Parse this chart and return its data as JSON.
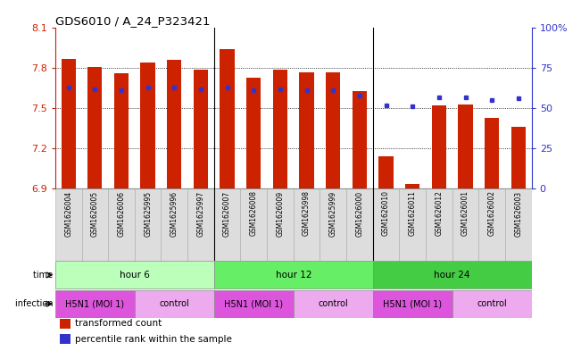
{
  "title": "GDS6010 / A_24_P323421",
  "samples": [
    "GSM1626004",
    "GSM1626005",
    "GSM1626006",
    "GSM1625995",
    "GSM1625996",
    "GSM1625997",
    "GSM1626007",
    "GSM1626008",
    "GSM1626009",
    "GSM1625998",
    "GSM1625999",
    "GSM1626000",
    "GSM1626010",
    "GSM1626011",
    "GSM1626012",
    "GSM1626001",
    "GSM1626002",
    "GSM1626003"
  ],
  "bar_values": [
    7.87,
    7.81,
    7.76,
    7.84,
    7.86,
    7.79,
    7.94,
    7.73,
    7.79,
    7.77,
    7.77,
    7.63,
    7.14,
    6.93,
    7.52,
    7.53,
    7.43,
    7.36
  ],
  "dot_values": [
    63,
    62,
    61,
    63,
    63,
    62,
    63,
    61,
    62,
    61,
    61,
    58,
    52,
    51,
    57,
    57,
    55,
    56
  ],
  "ymin": 6.9,
  "ymax": 8.1,
  "yticks": [
    6.9,
    7.2,
    7.5,
    7.8,
    8.1
  ],
  "right_yticks": [
    0,
    25,
    50,
    75,
    100
  ],
  "right_ytick_labels": [
    "0",
    "25",
    "50",
    "75",
    "100%"
  ],
  "bar_color": "#CC2200",
  "dot_color": "#3333CC",
  "time_groups": [
    {
      "label": "hour 6",
      "start": 0,
      "end": 6,
      "color": "#BBFFBB"
    },
    {
      "label": "hour 12",
      "start": 6,
      "end": 12,
      "color": "#66EE66"
    },
    {
      "label": "hour 24",
      "start": 12,
      "end": 18,
      "color": "#44CC44"
    }
  ],
  "infection_groups": [
    {
      "label": "H5N1 (MOI 1)",
      "start": 0,
      "end": 3,
      "color": "#DD55DD"
    },
    {
      "label": "control",
      "start": 3,
      "end": 6,
      "color": "#EEAAEE"
    },
    {
      "label": "H5N1 (MOI 1)",
      "start": 6,
      "end": 9,
      "color": "#DD55DD"
    },
    {
      "label": "control",
      "start": 9,
      "end": 12,
      "color": "#EEAAEE"
    },
    {
      "label": "H5N1 (MOI 1)",
      "start": 12,
      "end": 15,
      "color": "#DD55DD"
    },
    {
      "label": "control",
      "start": 15,
      "end": 18,
      "color": "#EEAAEE"
    }
  ],
  "legend_items": [
    {
      "color": "#CC2200",
      "label": "transformed count"
    },
    {
      "color": "#3333CC",
      "label": "percentile rank within the sample"
    }
  ],
  "sample_col_color": "#DDDDDD",
  "sample_col_edge": "#AAAAAA",
  "bg_color": "#FFFFFF"
}
